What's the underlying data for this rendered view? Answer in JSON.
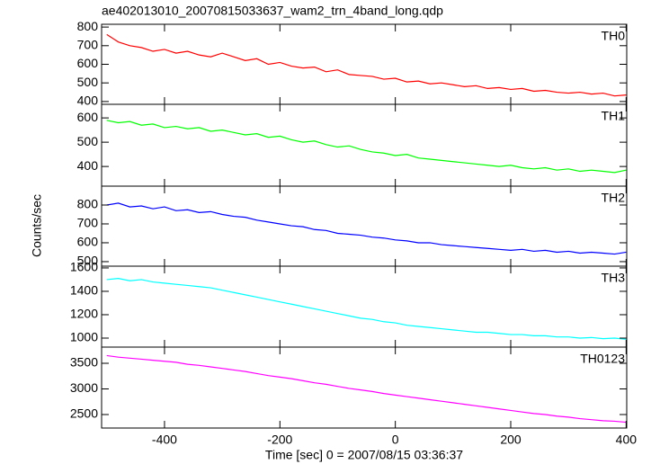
{
  "chart_data": [
    {
      "type": "line",
      "title": "ae402013010_20070815033637_wam2_trn_4band_long.qdp",
      "annotation": "TH0",
      "x": [
        -500,
        -480,
        -460,
        -440,
        -420,
        -400,
        -380,
        -360,
        -340,
        -320,
        -300,
        -280,
        -260,
        -240,
        -220,
        -200,
        -180,
        -160,
        -140,
        -120,
        -100,
        -80,
        -60,
        -40,
        -20,
        0,
        20,
        40,
        60,
        80,
        100,
        120,
        140,
        160,
        180,
        200,
        220,
        240,
        260,
        280,
        300,
        320,
        340,
        360,
        380,
        400
      ],
      "series": [
        {
          "name": "TH0",
          "color": "#ff0000",
          "values": [
            760,
            720,
            700,
            690,
            670,
            680,
            660,
            670,
            650,
            640,
            660,
            640,
            620,
            630,
            600,
            610,
            590,
            580,
            585,
            560,
            570,
            545,
            540,
            535,
            520,
            525,
            505,
            510,
            495,
            500,
            490,
            480,
            485,
            470,
            475,
            465,
            470,
            455,
            460,
            450,
            445,
            450,
            440,
            445,
            430,
            435
          ]
        }
      ],
      "xlim": [
        -509,
        401
      ],
      "xticks": [
        -400,
        -200,
        0,
        200,
        400
      ],
      "ylim": [
        385,
        815
      ],
      "yticks": [
        400,
        500,
        600,
        700,
        800
      ]
    },
    {
      "type": "line",
      "annotation": "TH1",
      "x": [
        -500,
        -480,
        -460,
        -440,
        -420,
        -400,
        -380,
        -360,
        -340,
        -320,
        -300,
        -280,
        -260,
        -240,
        -220,
        -200,
        -180,
        -160,
        -140,
        -120,
        -100,
        -80,
        -60,
        -40,
        -20,
        0,
        20,
        40,
        60,
        80,
        100,
        120,
        140,
        160,
        180,
        200,
        220,
        240,
        260,
        280,
        300,
        320,
        340,
        360,
        380,
        400
      ],
      "series": [
        {
          "name": "TH1",
          "color": "#00ff00",
          "values": [
            590,
            580,
            585,
            570,
            575,
            560,
            565,
            555,
            560,
            545,
            550,
            540,
            530,
            535,
            520,
            525,
            510,
            500,
            505,
            490,
            480,
            485,
            470,
            460,
            455,
            445,
            450,
            435,
            430,
            425,
            420,
            415,
            410,
            405,
            400,
            405,
            395,
            390,
            395,
            385,
            390,
            380,
            385,
            380,
            375,
            385
          ]
        }
      ],
      "xlim": [
        -509,
        401
      ],
      "xticks": [
        -400,
        -200,
        0,
        200,
        400
      ],
      "ylim": [
        319,
        656
      ],
      "yticks": [
        400,
        500,
        600
      ]
    },
    {
      "type": "line",
      "annotation": "TH2",
      "y_label": "Counts/sec",
      "x": [
        -500,
        -480,
        -460,
        -440,
        -420,
        -400,
        -380,
        -360,
        -340,
        -320,
        -300,
        -280,
        -260,
        -240,
        -220,
        -200,
        -180,
        -160,
        -140,
        -120,
        -100,
        -80,
        -60,
        -40,
        -20,
        0,
        20,
        40,
        60,
        80,
        100,
        120,
        140,
        160,
        180,
        200,
        220,
        240,
        260,
        280,
        300,
        320,
        340,
        360,
        380,
        400
      ],
      "series": [
        {
          "name": "TH2",
          "color": "#0000ff",
          "values": [
            800,
            810,
            790,
            795,
            780,
            790,
            770,
            775,
            760,
            765,
            750,
            740,
            735,
            720,
            710,
            700,
            690,
            685,
            670,
            665,
            650,
            645,
            640,
            630,
            625,
            615,
            610,
            600,
            600,
            590,
            585,
            580,
            575,
            570,
            565,
            560,
            565,
            555,
            560,
            550,
            555,
            545,
            550,
            545,
            540,
            550
          ]
        }
      ],
      "xlim": [
        -509,
        401
      ],
      "xticks": [
        -400,
        -200,
        0,
        200,
        400
      ],
      "ylim": [
        476,
        900
      ],
      "yticks": [
        500,
        600,
        700,
        800
      ]
    },
    {
      "type": "line",
      "annotation": "TH3",
      "x": [
        -500,
        -480,
        -460,
        -440,
        -420,
        -400,
        -380,
        -360,
        -340,
        -320,
        -300,
        -280,
        -260,
        -240,
        -220,
        -200,
        -180,
        -160,
        -140,
        -120,
        -100,
        -80,
        -60,
        -40,
        -20,
        0,
        20,
        40,
        60,
        80,
        100,
        120,
        140,
        160,
        180,
        200,
        220,
        240,
        260,
        280,
        300,
        320,
        340,
        360,
        380,
        400
      ],
      "series": [
        {
          "name": "TH3",
          "color": "#00ffff",
          "values": [
            1500,
            1510,
            1490,
            1500,
            1480,
            1470,
            1460,
            1450,
            1440,
            1430,
            1410,
            1390,
            1370,
            1350,
            1330,
            1310,
            1290,
            1270,
            1250,
            1230,
            1210,
            1190,
            1170,
            1160,
            1140,
            1130,
            1110,
            1100,
            1090,
            1080,
            1070,
            1060,
            1050,
            1050,
            1040,
            1030,
            1030,
            1020,
            1020,
            1010,
            1010,
            1000,
            1005,
            995,
            1000,
            990
          ]
        }
      ],
      "xlim": [
        -509,
        401
      ],
      "xticks": [
        -400,
        -200,
        0,
        200,
        400
      ],
      "ylim": [
        923,
        1615
      ],
      "yticks": [
        1000,
        1200,
        1400,
        1600
      ]
    },
    {
      "type": "line",
      "annotation": "TH0123",
      "x_label": "Time [sec] 0 = 2007/08/15 03:36:37",
      "x": [
        -500,
        -480,
        -460,
        -440,
        -420,
        -400,
        -380,
        -360,
        -340,
        -320,
        -300,
        -280,
        -260,
        -240,
        -220,
        -200,
        -180,
        -160,
        -140,
        -120,
        -100,
        -80,
        -60,
        -40,
        -20,
        0,
        20,
        40,
        60,
        80,
        100,
        120,
        140,
        160,
        180,
        200,
        220,
        240,
        260,
        280,
        300,
        320,
        340,
        360,
        380,
        400
      ],
      "series": [
        {
          "name": "TH0123",
          "color": "#ff00ff",
          "values": [
            3650,
            3620,
            3600,
            3580,
            3560,
            3540,
            3520,
            3480,
            3460,
            3430,
            3400,
            3370,
            3340,
            3300,
            3260,
            3230,
            3200,
            3160,
            3120,
            3090,
            3050,
            3010,
            2980,
            2950,
            2910,
            2880,
            2850,
            2820,
            2790,
            2760,
            2730,
            2700,
            2670,
            2640,
            2610,
            2580,
            2550,
            2520,
            2500,
            2470,
            2450,
            2420,
            2400,
            2380,
            2370,
            2350
          ]
        }
      ],
      "xlim": [
        -509,
        401
      ],
      "xticks": [
        -400,
        -200,
        0,
        200,
        400
      ],
      "ylim": [
        2237,
        3816
      ],
      "yticks": [
        2500,
        3000,
        3500
      ]
    }
  ]
}
